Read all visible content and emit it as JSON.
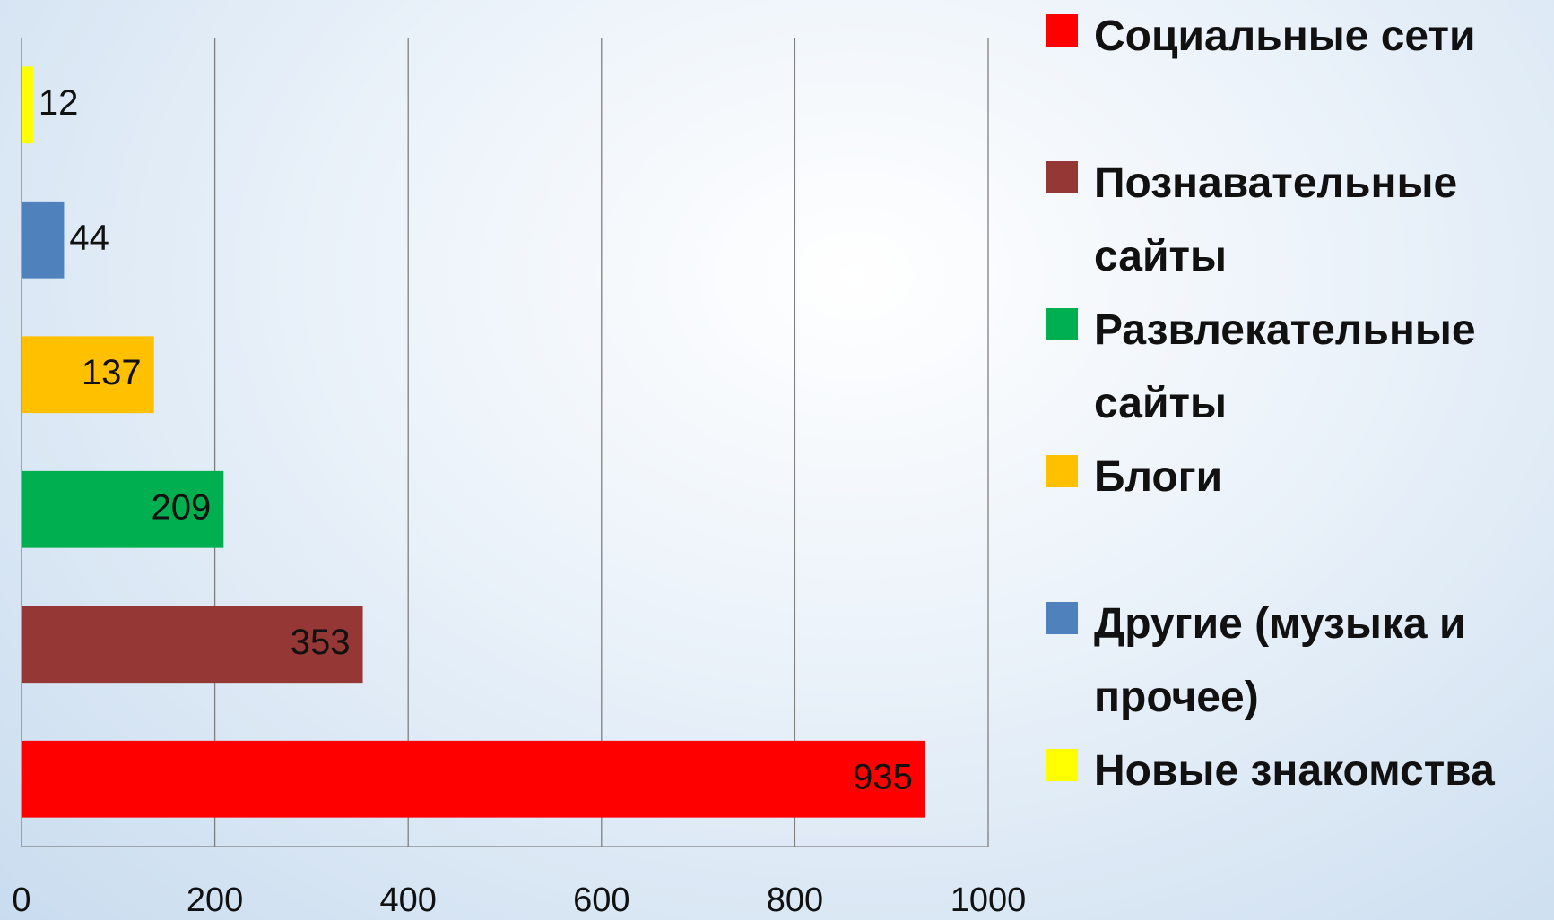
{
  "chart_data": {
    "type": "bar",
    "orientation": "horizontal",
    "categories": [
      null
    ],
    "series": [
      {
        "name": "Социальные сети",
        "color": "#ff0000",
        "values": [
          935
        ]
      },
      {
        "name": "Познавательные сайты",
        "color": "#953735",
        "values": [
          353
        ]
      },
      {
        "name": "Развлекательные сайты",
        "color": "#00b050",
        "values": [
          209
        ]
      },
      {
        "name": "Блоги",
        "color": "#ffc000",
        "values": [
          137
        ]
      },
      {
        "name": "Другие (музыка и прочее)",
        "color": "#4f81bd",
        "values": [
          44
        ]
      },
      {
        "name": "Новые знакомства",
        "color": "#ffff00",
        "values": [
          12
        ]
      }
    ],
    "xlim": [
      0,
      1000
    ],
    "xticks": [
      0,
      200,
      400,
      600,
      800,
      1000
    ],
    "grid": true,
    "legend": "right"
  }
}
